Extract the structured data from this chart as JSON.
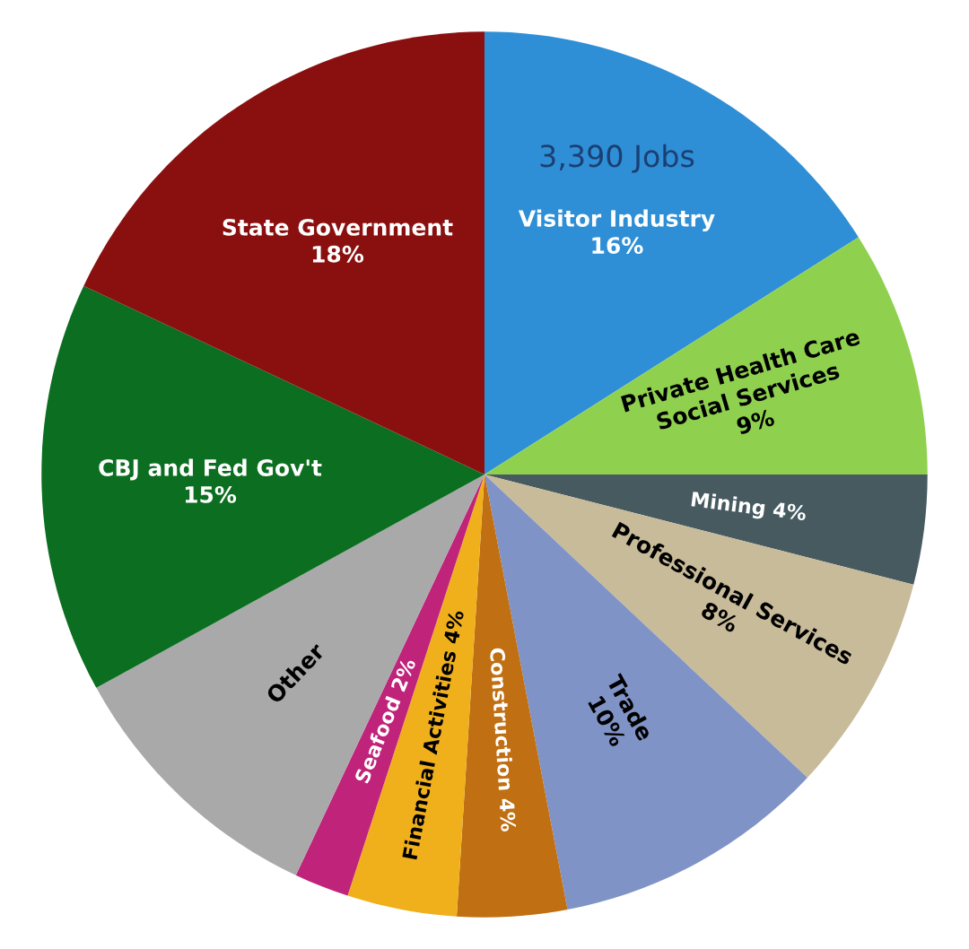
{
  "chart_data": {
    "type": "pie",
    "categories": [
      "Visitor Industry",
      "Private Health Care\nSocial Services",
      "Mining",
      "Professional Services",
      "Trade",
      "Construction",
      "Financial Activities",
      "Seafood",
      "Other",
      "CBJ and Fed Gov't",
      "State Government"
    ],
    "values": [
      16,
      9,
      4,
      8,
      10,
      4,
      4,
      2,
      10,
      15,
      18
    ],
    "value_labels": [
      "16%",
      "9%",
      "4%",
      "8%",
      "10%",
      "4%",
      "4%",
      "2%",
      null,
      "15%",
      "18%"
    ],
    "colors": [
      "#2f8fd6",
      "#8fd14f",
      "#465a60",
      "#c8bb9a",
      "#7f93c6",
      "#c06f12",
      "#f0b01c",
      "#c0237a",
      "#a9a9a9",
      "#0c6e20",
      "#8a1010"
    ],
    "annotations": [
      {
        "text": "3,390 Jobs",
        "x": "Visitor Industry"
      }
    ]
  }
}
